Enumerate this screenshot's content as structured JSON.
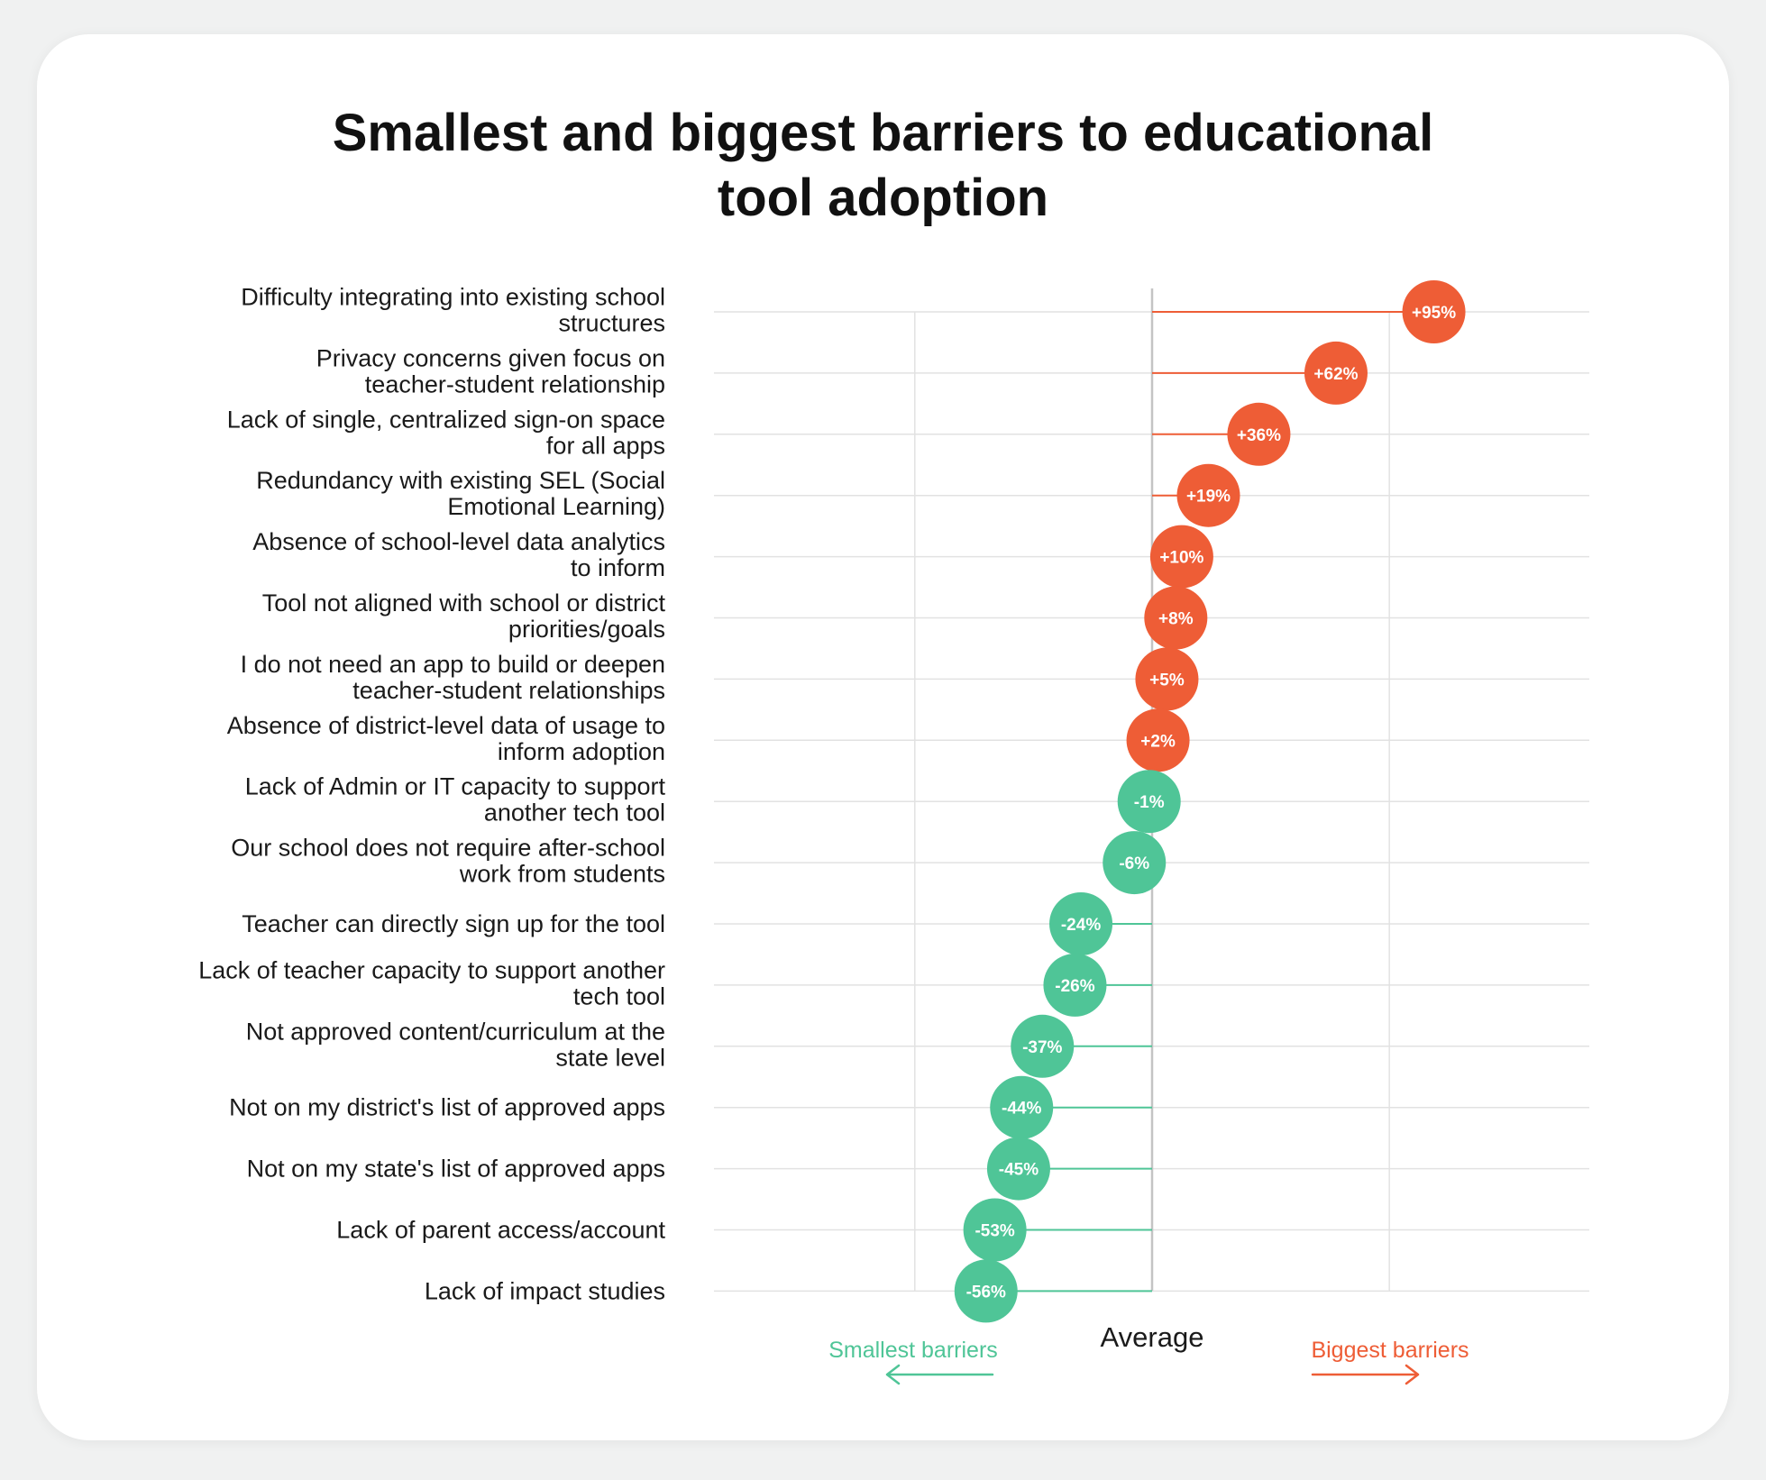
{
  "colors": {
    "positive": "#ee5d36",
    "negative": "#4fc597",
    "grid": "#e2e2e2",
    "average_line": "#c4c4c4",
    "text": "#1a1a1a"
  },
  "chart_data": {
    "type": "lollipop",
    "title_lines": [
      "Smallest and biggest barriers to educational",
      "tool adoption"
    ],
    "average_label": "Average",
    "left_direction_label": "Smallest barriers",
    "right_direction_label": "Biggest barriers",
    "xlim": [
      -100,
      100
    ],
    "categories": [
      {
        "label_lines": [
          "Difficulty integrating into existing school",
          "structures"
        ],
        "value": 95,
        "value_label": "+95%"
      },
      {
        "label_lines": [
          "Privacy concerns given focus on",
          "teacher-student relationship"
        ],
        "value": 62,
        "value_label": "+62%"
      },
      {
        "label_lines": [
          "Lack of single, centralized sign-on space",
          "for all apps"
        ],
        "value": 36,
        "value_label": "+36%"
      },
      {
        "label_lines": [
          "Redundancy with existing SEL (Social",
          "Emotional Learning)"
        ],
        "value": 19,
        "value_label": "+19%"
      },
      {
        "label_lines": [
          "Absence of school-level data analytics",
          "to inform"
        ],
        "value": 10,
        "value_label": "+10%"
      },
      {
        "label_lines": [
          "Tool not aligned with school or district",
          "priorities/goals"
        ],
        "value": 8,
        "value_label": "+8%"
      },
      {
        "label_lines": [
          "I do not need an app to build or deepen",
          "teacher-student relationships"
        ],
        "value": 5,
        "value_label": "+5%"
      },
      {
        "label_lines": [
          "Absence of district-level data of usage to",
          "inform adoption"
        ],
        "value": 2,
        "value_label": "+2%"
      },
      {
        "label_lines": [
          "Lack of Admin or IT capacity to support",
          "another tech tool"
        ],
        "value": -1,
        "value_label": "-1%"
      },
      {
        "label_lines": [
          "Our school does not require after-school",
          "work from students"
        ],
        "value": -6,
        "value_label": "-6%"
      },
      {
        "label_lines": [
          "Teacher can directly sign up for the tool"
        ],
        "value": -24,
        "value_label": "-24%"
      },
      {
        "label_lines": [
          "Lack of teacher capacity to support another",
          "tech tool"
        ],
        "value": -26,
        "value_label": "-26%"
      },
      {
        "label_lines": [
          "Not approved content/curriculum at the",
          "state level"
        ],
        "value": -37,
        "value_label": "-37%"
      },
      {
        "label_lines": [
          "Not on my district's list of approved apps"
        ],
        "value": -44,
        "value_label": "-44%"
      },
      {
        "label_lines": [
          "Not on my state's list of approved apps"
        ],
        "value": -45,
        "value_label": "-45%"
      },
      {
        "label_lines": [
          "Lack of parent access/account"
        ],
        "value": -53,
        "value_label": "-53%"
      },
      {
        "label_lines": [
          "Lack of impact studies"
        ],
        "value": -56,
        "value_label": "-56%"
      }
    ]
  }
}
